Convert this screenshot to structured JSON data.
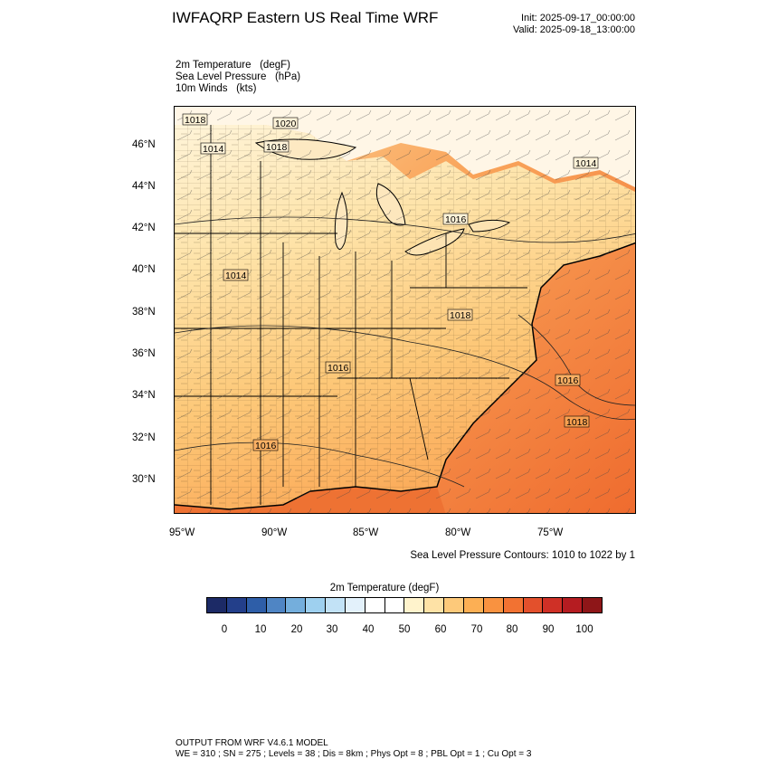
{
  "header": {
    "title": "IWFAQRP Eastern US Real Time WRF",
    "init": "Init: 2025-09-17_00:00:00",
    "valid": "Valid: 2025-09-18_13:00:00"
  },
  "fields": [
    "2m Temperature   (degF)",
    "Sea Level Pressure   (hPa)",
    "10m Winds   (kts)"
  ],
  "map": {
    "lat_labels": [
      "46°N",
      "44°N",
      "42°N",
      "40°N",
      "38°N",
      "36°N",
      "34°N",
      "32°N",
      "30°N"
    ],
    "lon_labels": [
      "95°W",
      "90°W",
      "85°W",
      "80°W",
      "75°W"
    ],
    "slp_contour_labels": [
      "1018",
      "1020",
      "1014",
      "1018",
      "1016",
      "1014",
      "1014",
      "1018",
      "1016",
      "1016",
      "1016",
      "1018"
    ],
    "contour_note": "Sea Level Pressure Contours: 1010 to 1022 by 1",
    "colors": {
      "land_warm": "#fdd594",
      "ocean_hot": "#ee7a3a",
      "coast": "#000000"
    }
  },
  "colorbar": {
    "title": "2m Temperature  (degF)",
    "labels": [
      "0",
      "10",
      "20",
      "30",
      "40",
      "50",
      "60",
      "70",
      "80",
      "90",
      "100"
    ],
    "colors": [
      "#1c2a66",
      "#233f8a",
      "#2e5ea8",
      "#4f85c4",
      "#74aedc",
      "#9ed0ef",
      "#c2e2f6",
      "#e3f1fb",
      "#ffffff",
      "#ffffff",
      "#fff3cc",
      "#fee2a6",
      "#fdc97a",
      "#fcaf54",
      "#f99240",
      "#f27232",
      "#e3502c",
      "#cf3026",
      "#b51c21",
      "#8e1618"
    ]
  },
  "footer": {
    "line1": "OUTPUT FROM WRF V4.6.1 MODEL",
    "line2": "WE = 310 ; SN = 275 ; Levels = 38 ; Dis = 8km ; Phys Opt = 8 ; PBL Opt = 1 ; Cu Opt = 3"
  }
}
